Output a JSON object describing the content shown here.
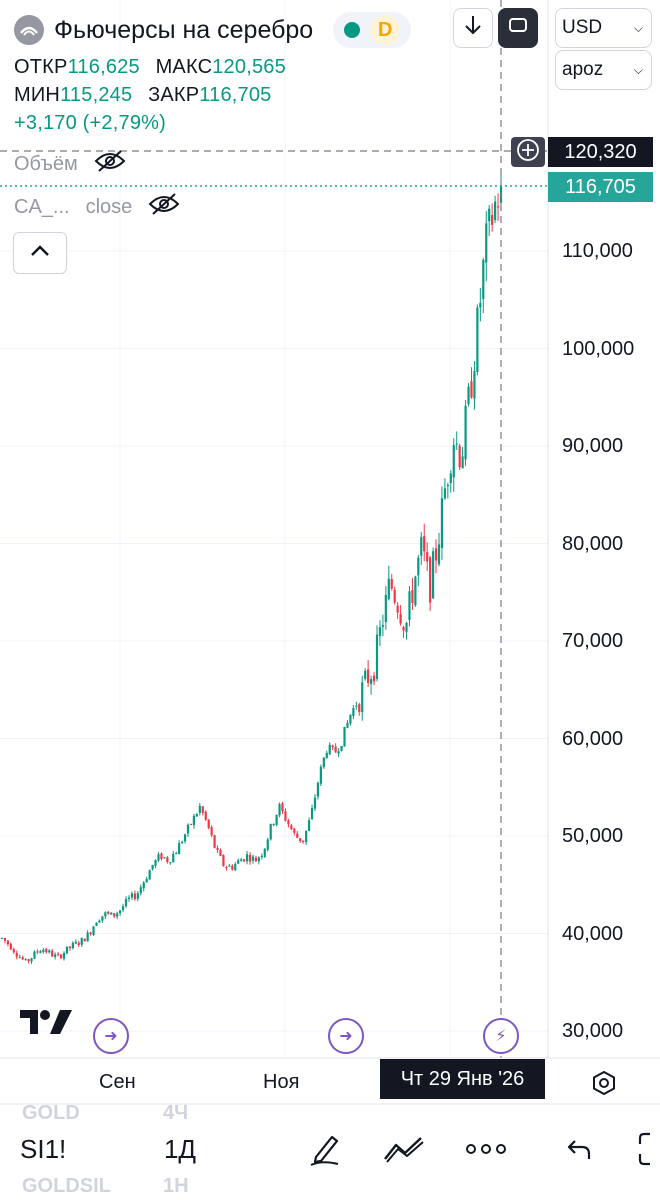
{
  "header": {
    "title": "Фьючерсы на серебро",
    "status_letter": "D",
    "currency": "USD",
    "scale": "apoz",
    "symbol_icon": "silver-coin-icon",
    "download_icon": "arrow-down-icon",
    "fullscreen_icon": "fullscreen-icon"
  },
  "ohlc": {
    "open_label": "ОТКР",
    "open": "116,625",
    "high_label": "МАКС",
    "high": "120,565",
    "low_label": "МИН",
    "low": "115,245",
    "close_label": "ЗАКР",
    "close": "116,705",
    "change": "+3,170 (+2,79%)"
  },
  "indicators": [
    {
      "label": "Объём",
      "icon": "eye-hidden-icon"
    },
    {
      "label": "CA_...",
      "extra": "close",
      "icon": "eye-hidden-icon"
    }
  ],
  "price_tags": {
    "crosshair": "120,320",
    "last": "116,705"
  },
  "colors": {
    "up": "#089981",
    "down": "#f23645",
    "event": "#7e57c2",
    "crosshair_tag": "#131722",
    "last_tag": "#26a69a"
  },
  "chart_data": {
    "type": "candlestick",
    "x_ticks": [
      "Сен",
      "Ноя"
    ],
    "crosshair_date": "Чт 29 Янв '26",
    "y_ticks": [
      "110,000",
      "100,000",
      "90,000",
      "80,000",
      "70,000",
      "60,000",
      "50,000",
      "40,000",
      "30,000"
    ],
    "ylim": [
      30000,
      120565
    ],
    "grid": true,
    "close_path": [
      39500,
      38800,
      37800,
      37000,
      37800,
      38500,
      38000,
      37500,
      38200,
      38800,
      39200,
      40000,
      41500,
      42000,
      41800,
      42500,
      43500,
      44000,
      45500,
      47000,
      48000,
      47500,
      48500,
      50000,
      51500,
      53000,
      51000,
      48500,
      47000,
      46800,
      47500,
      48000,
      47500,
      48500,
      51000,
      53000,
      51500,
      50000,
      49500,
      52000,
      56000,
      59000,
      58500,
      60000,
      62500,
      64000,
      66000,
      67500,
      72000,
      76000,
      74000,
      71500,
      76000,
      79500,
      75500,
      80000,
      86000,
      91000,
      89000,
      95000,
      102000,
      110000,
      114000,
      116705
    ],
    "event_markers": [
      "dividend-arrow-icon",
      "dividend-arrow-icon",
      "lightning-icon"
    ]
  },
  "logo": "TradingView logo",
  "bottom_bar": {
    "symbol": "SI1!",
    "interval": "1Д",
    "ghost_symbol_1": "GOLD",
    "ghost_interval_1": "4Ч",
    "ghost_symbol_2": "GOLDSIL",
    "ghost_interval_2": "1Н",
    "draw_icon": "pen-icon",
    "indicators_icon": "indicators-icon",
    "more_icon": "more-dots-icon",
    "undo_icon": "undo-icon",
    "settings_icon": "hexagon-settings-icon"
  }
}
